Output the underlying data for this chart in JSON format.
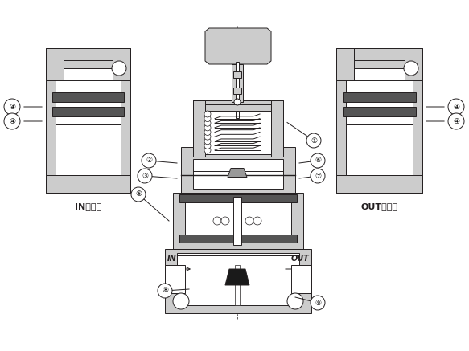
{
  "bg_color": "#ffffff",
  "line_color": "#231f20",
  "gray_fill": "#aaaaaa",
  "light_gray": "#cccccc",
  "mid_gray": "#999999",
  "dark_fill": "#555555",
  "black_fill": "#1a1a1a",
  "labels": {
    "in_text": "IN側通路",
    "out_text": "OUT側通路",
    "in_arrow": "IN",
    "out_arrow": "OUT"
  },
  "fig_width": 5.83,
  "fig_height": 4.37,
  "dpi": 100
}
